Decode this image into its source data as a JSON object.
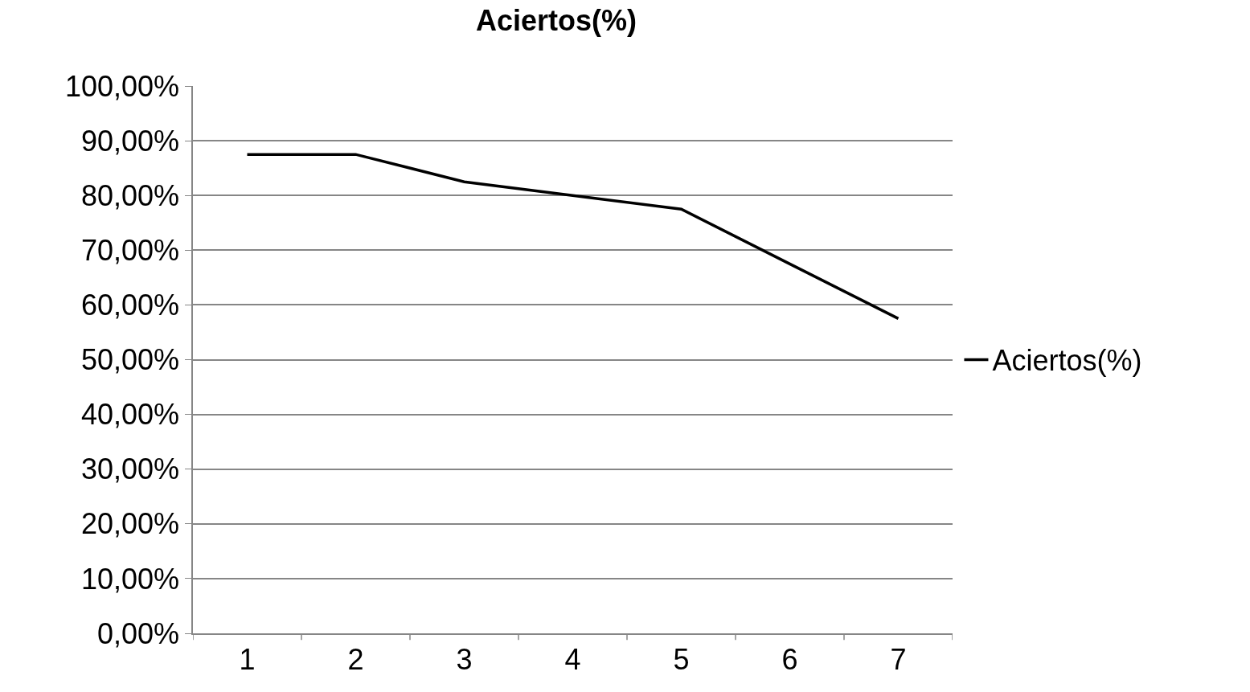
{
  "chart_data": {
    "type": "line",
    "title": "Aciertos(%)",
    "categories": [
      "1",
      "2",
      "3",
      "4",
      "5",
      "6",
      "7"
    ],
    "series": [
      {
        "name": "Aciertos(%)",
        "color": "#000000",
        "values": [
          87.5,
          87.5,
          82.5,
          80,
          77.5,
          67.5,
          57.5
        ]
      }
    ],
    "ylim": [
      0,
      100
    ],
    "yticks": [
      {
        "value": 0,
        "label": "0,00%"
      },
      {
        "value": 10,
        "label": "10,00%"
      },
      {
        "value": 20,
        "label": "20,00%"
      },
      {
        "value": 30,
        "label": "30,00%"
      },
      {
        "value": 40,
        "label": "40,00%"
      },
      {
        "value": 50,
        "label": "50,00%"
      },
      {
        "value": 60,
        "label": "60,00%"
      },
      {
        "value": 70,
        "label": "70,00%"
      },
      {
        "value": 80,
        "label": "80,00%"
      },
      {
        "value": 90,
        "label": "90,00%"
      },
      {
        "value": 100,
        "label": "100,00%"
      }
    ],
    "grid": "y",
    "legend": "right",
    "marker": "none",
    "line_style": "solid"
  }
}
